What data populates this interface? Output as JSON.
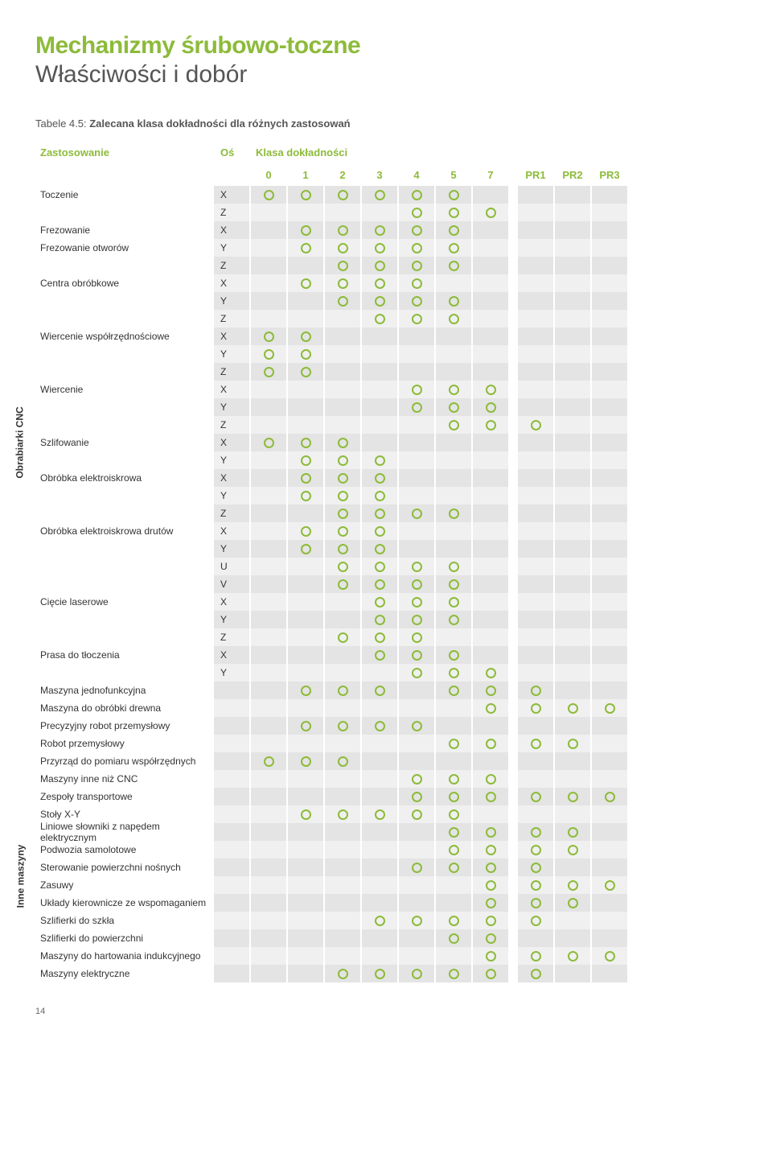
{
  "title_main": "Mechanizmy śrubowo-toczne",
  "title_sub": "Właściwości i dobór",
  "caption_prefix": "Tabele 4.5: ",
  "caption_text": "Zalecana klasa dokładności dla różnych zastosowań",
  "header_app": "Zastosowanie",
  "header_axis": "Oś",
  "header_class": "Klasa dokładności",
  "class_cols": [
    "0",
    "1",
    "2",
    "3",
    "4",
    "5",
    "7"
  ],
  "pr_cols": [
    "PR1",
    "PR2",
    "PR3"
  ],
  "accent_color": "#8dbb3a",
  "sidecats": [
    {
      "label": "Obrabiarki CNC",
      "from": 0,
      "to": 28
    },
    {
      "label": "Inne maszyny",
      "from": 29,
      "to": 48
    }
  ],
  "rows": [
    {
      "label": "Toczenie",
      "axis": "X",
      "marks": [
        1,
        1,
        1,
        1,
        1,
        1,
        0,
        0,
        0,
        0
      ]
    },
    {
      "label": "",
      "axis": "Z",
      "marks": [
        0,
        0,
        0,
        0,
        1,
        1,
        1,
        0,
        0,
        0
      ]
    },
    {
      "label": "Frezowanie",
      "axis": "X",
      "marks": [
        0,
        1,
        1,
        1,
        1,
        1,
        0,
        0,
        0,
        0
      ]
    },
    {
      "label": "Frezowanie otworów",
      "axis": "Y",
      "marks": [
        0,
        1,
        1,
        1,
        1,
        1,
        0,
        0,
        0,
        0
      ]
    },
    {
      "label": "",
      "axis": "Z",
      "marks": [
        0,
        0,
        1,
        1,
        1,
        1,
        0,
        0,
        0,
        0
      ]
    },
    {
      "label": "Centra obróbkowe",
      "axis": "X",
      "marks": [
        0,
        1,
        1,
        1,
        1,
        0,
        0,
        0,
        0,
        0
      ]
    },
    {
      "label": "",
      "axis": "Y",
      "marks": [
        0,
        0,
        1,
        1,
        1,
        1,
        0,
        0,
        0,
        0
      ]
    },
    {
      "label": "",
      "axis": "Z",
      "marks": [
        0,
        0,
        0,
        1,
        1,
        1,
        0,
        0,
        0,
        0
      ]
    },
    {
      "label": "Wiercenie współrzędnościowe",
      "axis": "X",
      "marks": [
        1,
        1,
        0,
        0,
        0,
        0,
        0,
        0,
        0,
        0
      ]
    },
    {
      "label": "",
      "axis": "Y",
      "marks": [
        1,
        1,
        0,
        0,
        0,
        0,
        0,
        0,
        0,
        0
      ]
    },
    {
      "label": "",
      "axis": "Z",
      "marks": [
        1,
        1,
        0,
        0,
        0,
        0,
        0,
        0,
        0,
        0
      ]
    },
    {
      "label": "Wiercenie",
      "axis": "X",
      "marks": [
        0,
        0,
        0,
        0,
        1,
        1,
        1,
        0,
        0,
        0
      ]
    },
    {
      "label": "",
      "axis": "Y",
      "marks": [
        0,
        0,
        0,
        0,
        1,
        1,
        1,
        0,
        0,
        0
      ]
    },
    {
      "label": "",
      "axis": "Z",
      "marks": [
        0,
        0,
        0,
        0,
        0,
        1,
        1,
        1,
        0,
        0
      ]
    },
    {
      "label": "Szlifowanie",
      "axis": "X",
      "marks": [
        1,
        1,
        1,
        0,
        0,
        0,
        0,
        0,
        0,
        0
      ]
    },
    {
      "label": "",
      "axis": "Y",
      "marks": [
        0,
        1,
        1,
        1,
        0,
        0,
        0,
        0,
        0,
        0
      ]
    },
    {
      "label": "Obróbka elektroiskrowa",
      "axis": "X",
      "marks": [
        0,
        1,
        1,
        1,
        0,
        0,
        0,
        0,
        0,
        0
      ]
    },
    {
      "label": "",
      "axis": "Y",
      "marks": [
        0,
        1,
        1,
        1,
        0,
        0,
        0,
        0,
        0,
        0
      ]
    },
    {
      "label": "",
      "axis": "Z",
      "marks": [
        0,
        0,
        1,
        1,
        1,
        1,
        0,
        0,
        0,
        0
      ]
    },
    {
      "label": "Obróbka elektroiskrowa drutów",
      "axis": "X",
      "marks": [
        0,
        1,
        1,
        1,
        0,
        0,
        0,
        0,
        0,
        0
      ]
    },
    {
      "label": "",
      "axis": "Y",
      "marks": [
        0,
        1,
        1,
        1,
        0,
        0,
        0,
        0,
        0,
        0
      ]
    },
    {
      "label": "",
      "axis": "U",
      "marks": [
        0,
        0,
        1,
        1,
        1,
        1,
        0,
        0,
        0,
        0
      ]
    },
    {
      "label": "",
      "axis": "V",
      "marks": [
        0,
        0,
        1,
        1,
        1,
        1,
        0,
        0,
        0,
        0
      ]
    },
    {
      "label": "Cięcie laserowe",
      "axis": "X",
      "marks": [
        0,
        0,
        0,
        1,
        1,
        1,
        0,
        0,
        0,
        0
      ]
    },
    {
      "label": "",
      "axis": "Y",
      "marks": [
        0,
        0,
        0,
        1,
        1,
        1,
        0,
        0,
        0,
        0
      ]
    },
    {
      "label": "",
      "axis": "Z",
      "marks": [
        0,
        0,
        1,
        1,
        1,
        0,
        0,
        0,
        0,
        0
      ]
    },
    {
      "label": "Prasa do tłoczenia",
      "axis": "X",
      "marks": [
        0,
        0,
        0,
        1,
        1,
        1,
        0,
        0,
        0,
        0
      ]
    },
    {
      "label": "",
      "axis": "Y",
      "marks": [
        0,
        0,
        0,
        0,
        1,
        1,
        1,
        0,
        0,
        0
      ]
    },
    {
      "label": "Maszyna jednofunkcyjna",
      "axis": "",
      "marks": [
        0,
        1,
        1,
        1,
        0,
        1,
        1,
        1,
        0,
        0
      ]
    },
    {
      "label": "Maszyna do obróbki drewna",
      "axis": "",
      "marks": [
        0,
        0,
        0,
        0,
        0,
        0,
        1,
        1,
        1,
        1
      ]
    },
    {
      "label": "Precyzyjny robot przemysłowy",
      "axis": "",
      "marks": [
        0,
        1,
        1,
        1,
        1,
        0,
        0,
        0,
        0,
        0
      ]
    },
    {
      "label": "Robot przemysłowy",
      "axis": "",
      "marks": [
        0,
        0,
        0,
        0,
        0,
        1,
        1,
        1,
        1,
        0
      ]
    },
    {
      "label": "Przyrząd do pomiaru współrzędnych",
      "axis": "",
      "marks": [
        1,
        1,
        1,
        0,
        0,
        0,
        0,
        0,
        0,
        0
      ]
    },
    {
      "label": "Maszyny inne niż CNC",
      "axis": "",
      "marks": [
        0,
        0,
        0,
        0,
        1,
        1,
        1,
        0,
        0,
        0
      ]
    },
    {
      "label": "Zespoły transportowe",
      "axis": "",
      "marks": [
        0,
        0,
        0,
        0,
        1,
        1,
        1,
        1,
        1,
        1
      ]
    },
    {
      "label": "Stoły X-Y",
      "axis": "",
      "marks": [
        0,
        1,
        1,
        1,
        1,
        1,
        0,
        0,
        0,
        0
      ]
    },
    {
      "label": "Liniowe słowniki z napędem elektrycznym",
      "axis": "",
      "marks": [
        0,
        0,
        0,
        0,
        0,
        1,
        1,
        1,
        1,
        0
      ]
    },
    {
      "label": "Podwozia samolotowe",
      "axis": "",
      "marks": [
        0,
        0,
        0,
        0,
        0,
        1,
        1,
        1,
        1,
        0
      ]
    },
    {
      "label": "Sterowanie powierzchni nośnych",
      "axis": "",
      "marks": [
        0,
        0,
        0,
        0,
        1,
        1,
        1,
        1,
        0,
        0
      ]
    },
    {
      "label": "Zasuwy",
      "axis": "",
      "marks": [
        0,
        0,
        0,
        0,
        0,
        0,
        1,
        1,
        1,
        1
      ]
    },
    {
      "label": "Układy kierownicze ze wspomaganiem",
      "axis": "",
      "marks": [
        0,
        0,
        0,
        0,
        0,
        0,
        1,
        1,
        1,
        0
      ]
    },
    {
      "label": "Szlifierki do szkła",
      "axis": "",
      "marks": [
        0,
        0,
        0,
        1,
        1,
        1,
        1,
        1,
        0,
        0
      ]
    },
    {
      "label": "Szlifierki do powierzchni",
      "axis": "",
      "marks": [
        0,
        0,
        0,
        0,
        0,
        1,
        1,
        0,
        0,
        0
      ]
    },
    {
      "label": "Maszyny do hartowania indukcyjnego",
      "axis": "",
      "marks": [
        0,
        0,
        0,
        0,
        0,
        0,
        1,
        1,
        1,
        1
      ]
    },
    {
      "label": "Maszyny elektryczne",
      "axis": "",
      "marks": [
        0,
        0,
        1,
        1,
        1,
        1,
        1,
        1,
        0,
        0
      ]
    }
  ],
  "page_number": "14"
}
